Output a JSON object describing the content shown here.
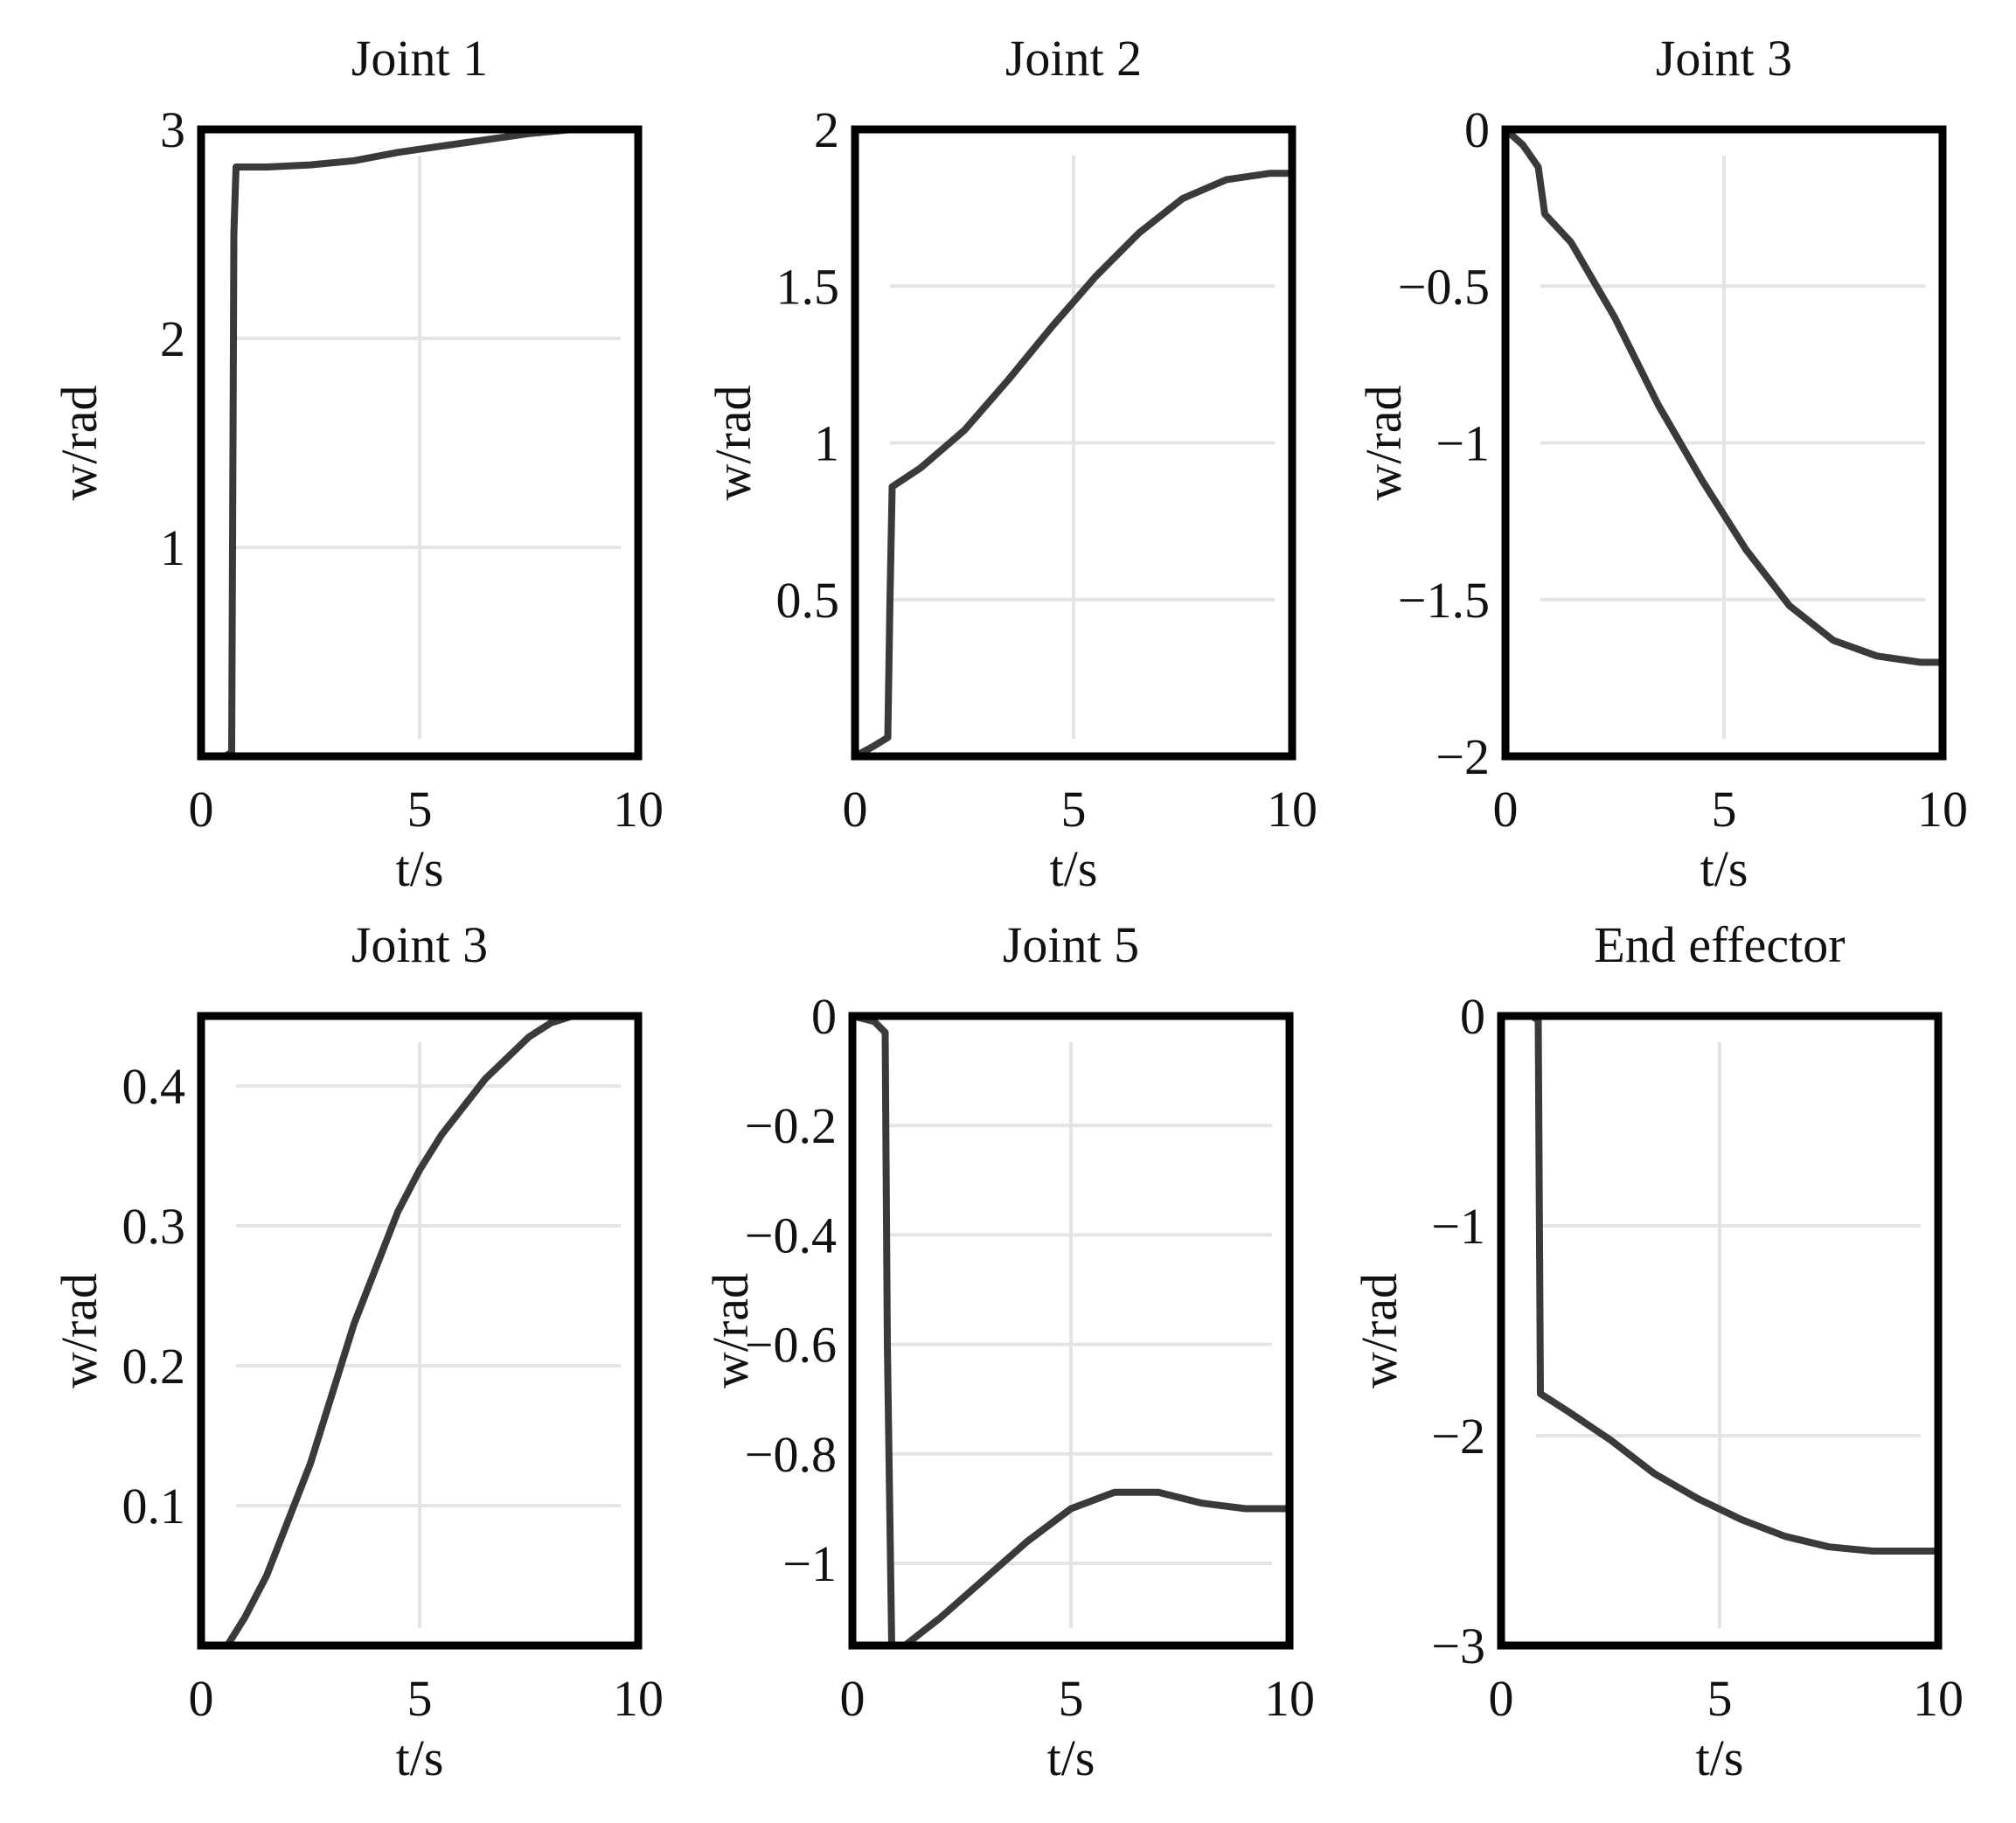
{
  "figure": {
    "background": "#ffffff",
    "line_color": "#3a3a3a",
    "frame_color": "#000000",
    "grid_color": "#e4e4e4"
  },
  "chart_data": [
    {
      "type": "line",
      "title": "Joint 1",
      "xlabel": "t/s",
      "ylabel": "w/rad",
      "xlim": [
        0,
        10
      ],
      "ylim": [
        0,
        3
      ],
      "xticks": [
        0,
        5,
        10
      ],
      "xtick_labels": [
        "0",
        "5",
        "10"
      ],
      "yticks": [
        1,
        2,
        3
      ],
      "ytick_labels": [
        "1",
        "2",
        "3"
      ],
      "grid_x": [
        5
      ],
      "grid_y": [
        1,
        2
      ],
      "x": [
        0,
        0.55,
        0.7,
        0.75,
        0.8,
        0.9,
        1.5,
        2.5,
        3.5,
        4.5,
        5.5,
        6.5,
        7.5,
        8.5,
        9.5,
        10
      ],
      "y": [
        0,
        0,
        0.02,
        2.5,
        2.82,
        2.82,
        2.82,
        2.83,
        2.85,
        2.89,
        2.92,
        2.95,
        2.98,
        3.0,
        3.0,
        3.0
      ]
    },
    {
      "type": "line",
      "title": "Joint 2",
      "xlabel": "t/s",
      "ylabel": "w/rad",
      "xlim": [
        0,
        10
      ],
      "ylim": [
        0,
        2
      ],
      "xticks": [
        0,
        5,
        10
      ],
      "xtick_labels": [
        "0",
        "5",
        "10"
      ],
      "yticks": [
        0.5,
        1,
        1.5,
        2
      ],
      "ytick_labels": [
        "0.5",
        "1",
        "1.5",
        "2"
      ],
      "grid_x": [
        5
      ],
      "grid_y": [
        0.5,
        1,
        1.5
      ],
      "x": [
        0,
        0.4,
        0.75,
        0.8,
        0.85,
        1.5,
        2.5,
        3.5,
        4.5,
        5.5,
        6.5,
        7.5,
        8.5,
        9.5,
        10
      ],
      "y": [
        0,
        0.03,
        0.06,
        0.5,
        0.86,
        0.92,
        1.04,
        1.2,
        1.37,
        1.53,
        1.67,
        1.78,
        1.84,
        1.86,
        1.86
      ]
    },
    {
      "type": "line",
      "title": "Joint 3",
      "xlabel": "t/s",
      "ylabel": "w/rad",
      "xlim": [
        0,
        10
      ],
      "ylim": [
        -2,
        0
      ],
      "xticks": [
        0,
        5,
        10
      ],
      "xtick_labels": [
        "0",
        "5",
        "10"
      ],
      "yticks": [
        0,
        -0.5,
        -1,
        -1.5,
        -2
      ],
      "ytick_labels": [
        "0",
        "−0.5",
        "−1",
        "−1.5",
        "−2"
      ],
      "grid_x": [
        5
      ],
      "grid_y": [
        -0.5,
        -1,
        -1.5
      ],
      "x": [
        0,
        0.4,
        0.75,
        0.9,
        1.5,
        2.5,
        3.5,
        4.5,
        5.5,
        6.5,
        7.5,
        8.5,
        9.5,
        10
      ],
      "y": [
        0,
        -0.05,
        -0.12,
        -0.27,
        -0.36,
        -0.6,
        -0.88,
        -1.12,
        -1.34,
        -1.52,
        -1.63,
        -1.68,
        -1.7,
        -1.7
      ]
    },
    {
      "type": "line",
      "title": "Joint 3",
      "xlabel": "t/s",
      "ylabel": "w/rad",
      "xlim": [
        0,
        10
      ],
      "ylim": [
        0,
        0.45
      ],
      "xticks": [
        0,
        5,
        10
      ],
      "xtick_labels": [
        "0",
        "5",
        "10"
      ],
      "yticks": [
        0.1,
        0.2,
        0.3,
        0.4
      ],
      "ytick_labels": [
        "0.1",
        "0.2",
        "0.3",
        "0.4"
      ],
      "grid_x": [
        5
      ],
      "grid_y": [
        0.1,
        0.2,
        0.3,
        0.4
      ],
      "x": [
        0.6,
        1.0,
        1.5,
        2.0,
        2.5,
        3.0,
        3.5,
        4.0,
        4.5,
        5.0,
        5.5,
        6.0,
        6.5,
        7.0,
        7.5,
        8.0,
        8.5,
        9.0,
        10
      ],
      "y": [
        0.0,
        0.02,
        0.05,
        0.09,
        0.13,
        0.18,
        0.23,
        0.27,
        0.31,
        0.34,
        0.365,
        0.385,
        0.405,
        0.42,
        0.435,
        0.445,
        0.45,
        0.45,
        0.45
      ]
    },
    {
      "type": "line",
      "title": "Joint 5",
      "xlabel": "t/s",
      "ylabel": "w/rad",
      "xlim": [
        0,
        10
      ],
      "ylim": [
        -1.15,
        0
      ],
      "xticks": [
        0,
        5,
        10
      ],
      "xtick_labels": [
        "0",
        "5",
        "10"
      ],
      "yticks": [
        0,
        -0.2,
        -0.4,
        -0.6,
        -0.8,
        -1
      ],
      "ytick_labels": [
        "0",
        "−0.2",
        "−0.4",
        "−0.6",
        "−0.8",
        "−1"
      ],
      "grid_x": [
        5
      ],
      "grid_y": [
        -0.2,
        -0.4,
        -0.6,
        -0.8,
        -1
      ],
      "x": [
        0,
        0.5,
        0.75,
        0.8,
        0.9,
        1.2,
        2.0,
        3.0,
        4.0,
        5.0,
        6.0,
        7.0,
        8.0,
        9.0,
        10
      ],
      "y": [
        0,
        -0.01,
        -0.03,
        -0.6,
        -1.15,
        -1.15,
        -1.1,
        -1.03,
        -0.96,
        -0.9,
        -0.87,
        -0.87,
        -0.89,
        -0.9,
        -0.9
      ]
    },
    {
      "type": "line",
      "title": "End effector",
      "xlabel": "t/s",
      "ylabel": "w/rad",
      "xlim": [
        0,
        10
      ],
      "ylim": [
        -3,
        0
      ],
      "xticks": [
        0,
        5,
        10
      ],
      "xtick_labels": [
        "0",
        "5",
        "10"
      ],
      "yticks": [
        0,
        -1,
        -2,
        -3
      ],
      "ytick_labels": [
        "0",
        "−1",
        "−2",
        "−3"
      ],
      "grid_x": [
        5
      ],
      "grid_y": [
        -1,
        -2
      ],
      "x": [
        0,
        0.7,
        0.85,
        0.9,
        1.5,
        2.5,
        3.5,
        4.5,
        5.5,
        6.5,
        7.5,
        8.5,
        9.5,
        10
      ],
      "y": [
        0,
        0,
        -0.02,
        -1.8,
        -1.88,
        -2.02,
        -2.18,
        -2.3,
        -2.4,
        -2.48,
        -2.53,
        -2.55,
        -2.55,
        -2.55
      ]
    }
  ]
}
